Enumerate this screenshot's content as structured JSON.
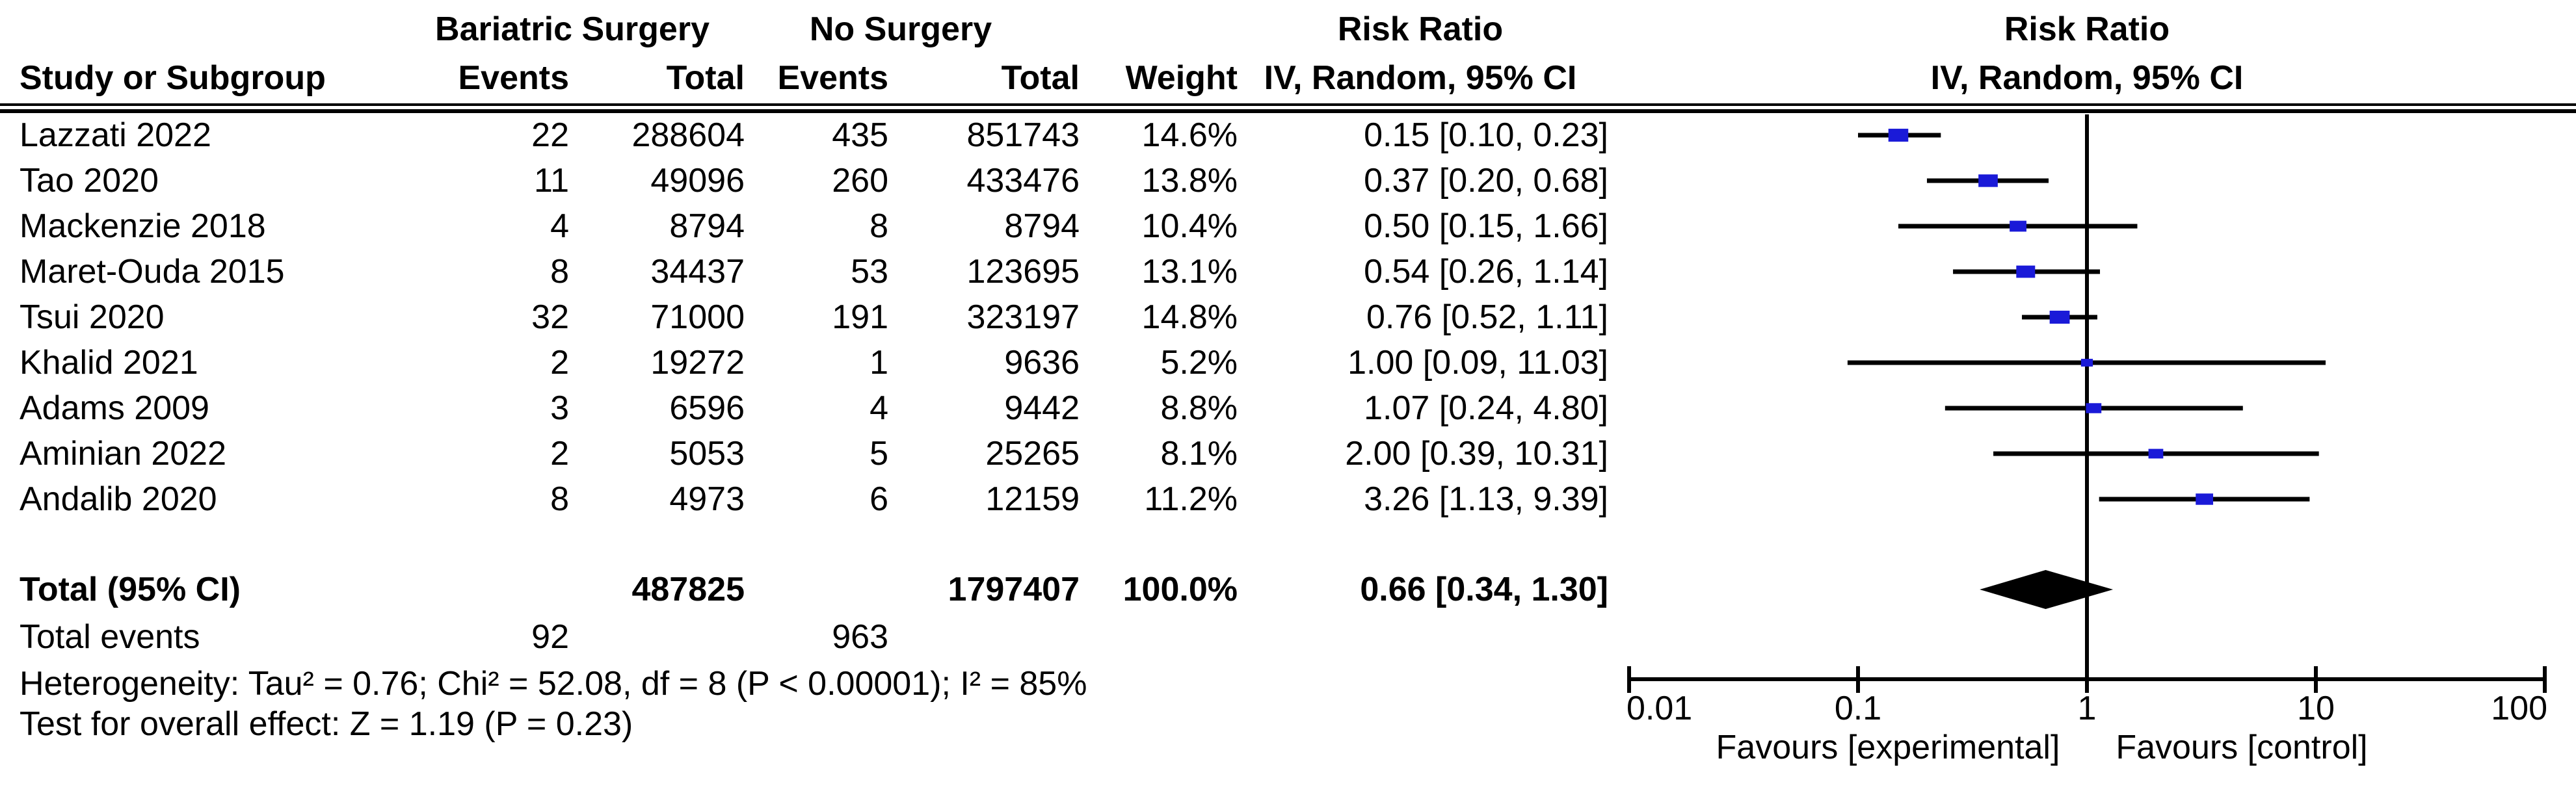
{
  "header": {
    "group_experimental": "Bariatric Surgery",
    "group_control": "No Surgery",
    "effect_title": "Risk Ratio",
    "effect_subtitle": "IV, Random, 95% CI",
    "plot_title": "Risk Ratio",
    "plot_subtitle": "IV, Random, 95% CI",
    "col_study": "Study or Subgroup",
    "col_events": "Events",
    "col_total": "Total",
    "col_weight": "Weight"
  },
  "chart_data": {
    "type": "forest",
    "effect_measure": "Risk Ratio",
    "method": "IV, Random, 95% CI",
    "x_scale": "log10",
    "x_ticks": [
      0.01,
      0.1,
      1,
      10,
      100
    ],
    "x_tick_labels": [
      "0.01",
      "0.1",
      "1",
      "10",
      "100"
    ],
    "xlim": [
      0.01,
      100
    ],
    "null_value": 1,
    "marker_color": "#1A1AD8",
    "line_color": "#000000",
    "studies": [
      {
        "name": "Lazzati 2022",
        "events_exp": "22",
        "total_exp": "288604",
        "events_ctrl": "435",
        "total_ctrl": "851743",
        "weight": "14.6%",
        "weight_val": 14.6,
        "rr": 0.15,
        "ci_low": 0.1,
        "ci_high": 0.23,
        "ci_text": "0.15 [0.10, 0.23]"
      },
      {
        "name": "Tao 2020",
        "events_exp": "11",
        "total_exp": "49096",
        "events_ctrl": "260",
        "total_ctrl": "433476",
        "weight": "13.8%",
        "weight_val": 13.8,
        "rr": 0.37,
        "ci_low": 0.2,
        "ci_high": 0.68,
        "ci_text": "0.37 [0.20, 0.68]"
      },
      {
        "name": "Mackenzie 2018",
        "events_exp": "4",
        "total_exp": "8794",
        "events_ctrl": "8",
        "total_ctrl": "8794",
        "weight": "10.4%",
        "weight_val": 10.4,
        "rr": 0.5,
        "ci_low": 0.15,
        "ci_high": 1.66,
        "ci_text": "0.50 [0.15, 1.66]"
      },
      {
        "name": "Maret-Ouda 2015",
        "events_exp": "8",
        "total_exp": "34437",
        "events_ctrl": "53",
        "total_ctrl": "123695",
        "weight": "13.1%",
        "weight_val": 13.1,
        "rr": 0.54,
        "ci_low": 0.26,
        "ci_high": 1.14,
        "ci_text": "0.54 [0.26, 1.14]"
      },
      {
        "name": "Tsui 2020",
        "events_exp": "32",
        "total_exp": "71000",
        "events_ctrl": "191",
        "total_ctrl": "323197",
        "weight": "14.8%",
        "weight_val": 14.8,
        "rr": 0.76,
        "ci_low": 0.52,
        "ci_high": 1.11,
        "ci_text": "0.76 [0.52, 1.11]"
      },
      {
        "name": "Khalid 2021",
        "events_exp": "2",
        "total_exp": "19272",
        "events_ctrl": "1",
        "total_ctrl": "9636",
        "weight": "5.2%",
        "weight_val": 5.2,
        "rr": 1.0,
        "ci_low": 0.09,
        "ci_high": 11.03,
        "ci_text": "1.00 [0.09, 11.03]"
      },
      {
        "name": "Adams 2009",
        "events_exp": "3",
        "total_exp": "6596",
        "events_ctrl": "4",
        "total_ctrl": "9442",
        "weight": "8.8%",
        "weight_val": 8.8,
        "rr": 1.07,
        "ci_low": 0.24,
        "ci_high": 4.8,
        "ci_text": "1.07 [0.24, 4.80]"
      },
      {
        "name": "Aminian 2022",
        "events_exp": "2",
        "total_exp": "5053",
        "events_ctrl": "5",
        "total_ctrl": "25265",
        "weight": "8.1%",
        "weight_val": 8.1,
        "rr": 2.0,
        "ci_low": 0.39,
        "ci_high": 10.31,
        "ci_text": "2.00 [0.39, 10.31]"
      },
      {
        "name": "Andalib 2020",
        "events_exp": "8",
        "total_exp": "4973",
        "events_ctrl": "6",
        "total_ctrl": "12159",
        "weight": "11.2%",
        "weight_val": 11.2,
        "rr": 3.26,
        "ci_low": 1.13,
        "ci_high": 9.39,
        "ci_text": "3.26 [1.13, 9.39]"
      }
    ],
    "total": {
      "label": "Total (95% CI)",
      "total_exp": "487825",
      "total_ctrl": "1797407",
      "weight": "100.0%",
      "rr": 0.66,
      "ci_low": 0.34,
      "ci_high": 1.3,
      "ci_text": "0.66 [0.34, 1.30]",
      "events_label": "Total events",
      "events_exp": "92",
      "events_ctrl": "963"
    },
    "footnotes": {
      "heterogeneity": "Heterogeneity: Tau² = 0.76; Chi² = 52.08, df = 8 (P < 0.00001); I² = 85%",
      "overall_effect": "Test for overall effect: Z = 1.19 (P = 0.23)"
    },
    "favours_left": "Favours [experimental]",
    "favours_right": "Favours [control]",
    "legend_position": "none",
    "grid": false
  }
}
